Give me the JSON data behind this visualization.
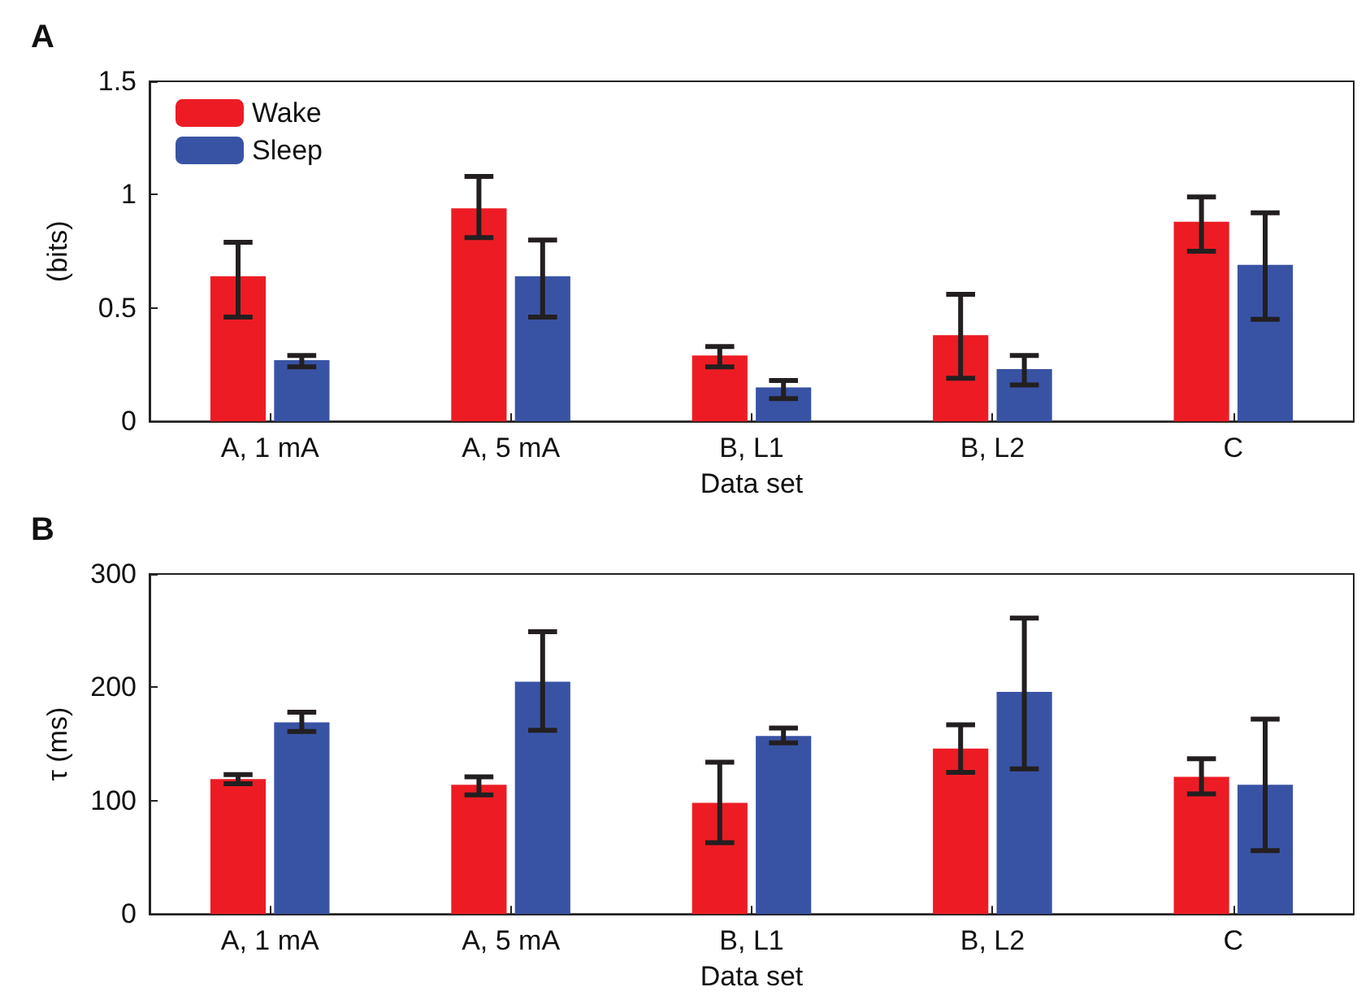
{
  "chart_data": [
    {
      "type": "bar",
      "title": "A",
      "xlabel": "Data set",
      "ylabel": "(bits)",
      "categories": [
        "A, 1 mA",
        "A, 5 mA",
        "B, L1",
        "B, L2",
        "C"
      ],
      "ylim": [
        0,
        1.5
      ],
      "yticks": [
        0,
        0.5,
        1,
        1.5
      ],
      "grid": false,
      "legend": "top left",
      "series": [
        {
          "name": "Wake",
          "color": "#ed1c24",
          "values": [
            0.64,
            0.94,
            0.29,
            0.38,
            0.88
          ],
          "errors": [
            [
              0.46,
              0.79
            ],
            [
              0.81,
              1.08
            ],
            [
              0.24,
              0.33
            ],
            [
              0.19,
              0.56
            ],
            [
              0.75,
              0.99
            ]
          ]
        },
        {
          "name": "Sleep",
          "color": "#3953a4",
          "values": [
            0.27,
            0.64,
            0.15,
            0.23,
            0.69
          ],
          "errors": [
            [
              0.24,
              0.29
            ],
            [
              0.46,
              0.8
            ],
            [
              0.1,
              0.18
            ],
            [
              0.16,
              0.29
            ],
            [
              0.45,
              0.92
            ]
          ]
        }
      ]
    },
    {
      "type": "bar",
      "title": "B",
      "xlabel": "Data set",
      "ylabel": "τ (ms)",
      "categories": [
        "A, 1 mA",
        "A, 5 mA",
        "B, L1",
        "B, L2",
        "C"
      ],
      "ylim": [
        0,
        300
      ],
      "yticks": [
        0,
        100,
        200,
        300
      ],
      "grid": false,
      "series": [
        {
          "color": "#ed1c24",
          "values": [
            119,
            114,
            98,
            146,
            121
          ],
          "errors": [
            [
              115,
              123
            ],
            [
              105,
              121
            ],
            [
              63,
              134
            ],
            [
              125,
              167
            ],
            [
              106,
              137
            ]
          ]
        },
        {
          "color": "#3953a4",
          "values": [
            169,
            205,
            157,
            196,
            114
          ],
          "errors": [
            [
              161,
              178
            ],
            [
              162,
              249
            ],
            [
              151,
              164
            ],
            [
              128,
              261
            ],
            [
              56,
              172
            ]
          ]
        }
      ]
    }
  ]
}
